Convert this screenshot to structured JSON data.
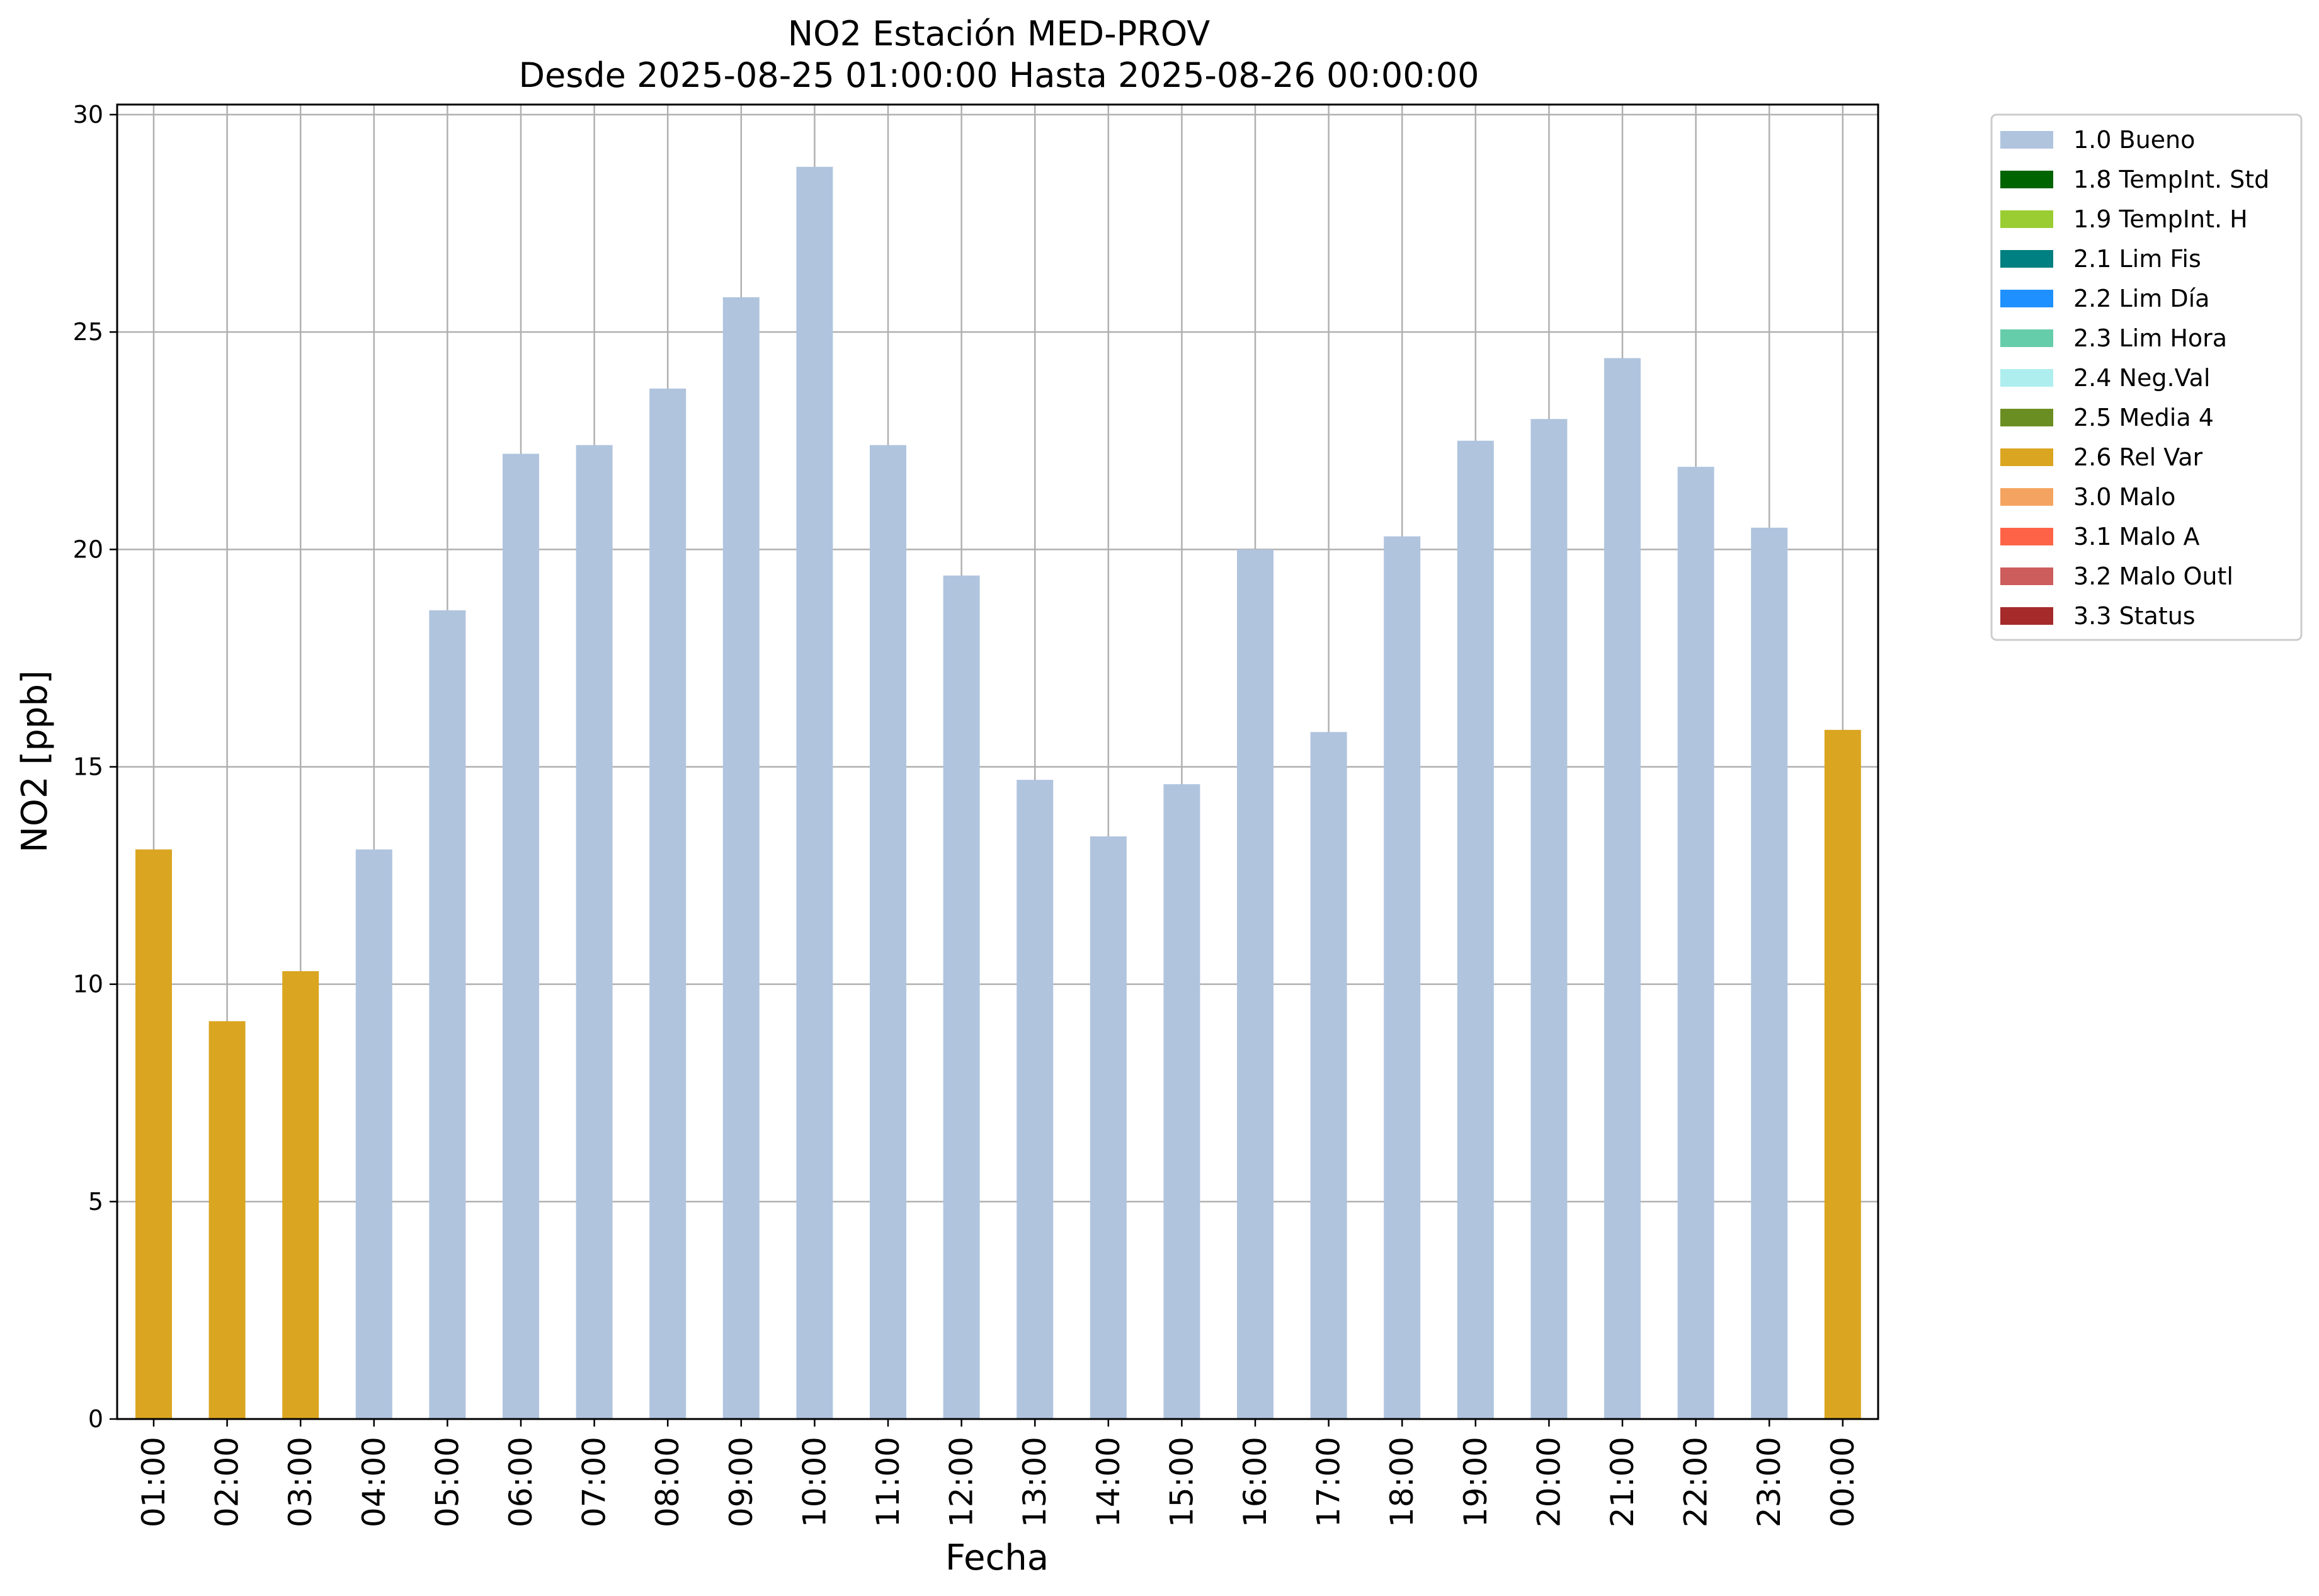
{
  "chart_data": {
    "type": "bar",
    "title": "NO2 Estación MED-PROV",
    "subtitle": "Desde 2025-08-25 01:00:00 Hasta 2025-08-26 00:00:00",
    "xlabel": "Fecha",
    "ylabel": "NO2 [ppb]",
    "ylim": [
      0,
      30
    ],
    "yticks": [
      "0",
      "5",
      "10",
      "15",
      "20",
      "25",
      "30"
    ],
    "grid": true,
    "legend_position": "outside-right-top",
    "categories": [
      "01:00",
      "02:00",
      "03:00",
      "04:00",
      "05:00",
      "06:00",
      "07:00",
      "08:00",
      "09:00",
      "10:00",
      "11:00",
      "12:00",
      "13:00",
      "14:00",
      "15:00",
      "16:00",
      "17:00",
      "18:00",
      "19:00",
      "20:00",
      "21:00",
      "22:00",
      "23:00",
      "00:00"
    ],
    "values": [
      13.1,
      9.15,
      10.3,
      13.1,
      18.6,
      22.2,
      22.4,
      23.7,
      25.8,
      28.8,
      22.4,
      19.4,
      14.7,
      13.4,
      14.6,
      20.0,
      15.8,
      20.3,
      22.5,
      23.0,
      24.4,
      21.9,
      20.5,
      15.85
    ],
    "flags": [
      "2.6 Rel Var",
      "2.6 Rel Var",
      "2.6 Rel Var",
      "1.0 Bueno",
      "1.0 Bueno",
      "1.0 Bueno",
      "1.0 Bueno",
      "1.0 Bueno",
      "1.0 Bueno",
      "1.0 Bueno",
      "1.0 Bueno",
      "1.0 Bueno",
      "1.0 Bueno",
      "1.0 Bueno",
      "1.0 Bueno",
      "1.0 Bueno",
      "1.0 Bueno",
      "1.0 Bueno",
      "1.0 Bueno",
      "1.0 Bueno",
      "1.0 Bueno",
      "1.0 Bueno",
      "1.0 Bueno",
      "2.6 Rel Var"
    ],
    "legend": [
      {
        "label": "1.0 Bueno",
        "color": "#b0c4de"
      },
      {
        "label": "1.8 TempInt. Std",
        "color": "#006400"
      },
      {
        "label": "1.9 TempInt. H",
        "color": "#9acd32"
      },
      {
        "label": "2.1 Lim Fis",
        "color": "#008080"
      },
      {
        "label": "2.2 Lim Día",
        "color": "#1e90ff"
      },
      {
        "label": "2.3 Lim Hora",
        "color": "#66cdaa"
      },
      {
        "label": "2.4 Neg.Val",
        "color": "#afeeee"
      },
      {
        "label": "2.5 Media 4",
        "color": "#6b8e23"
      },
      {
        "label": "2.6 Rel Var",
        "color": "#daa520"
      },
      {
        "label": "3.0 Malo",
        "color": "#f4a460"
      },
      {
        "label": "3.1 Malo A",
        "color": "#ff6347"
      },
      {
        "label": "3.2 Malo Outl",
        "color": "#cd5c5c"
      },
      {
        "label": "3.3 Status",
        "color": "#a52a2a"
      }
    ]
  }
}
